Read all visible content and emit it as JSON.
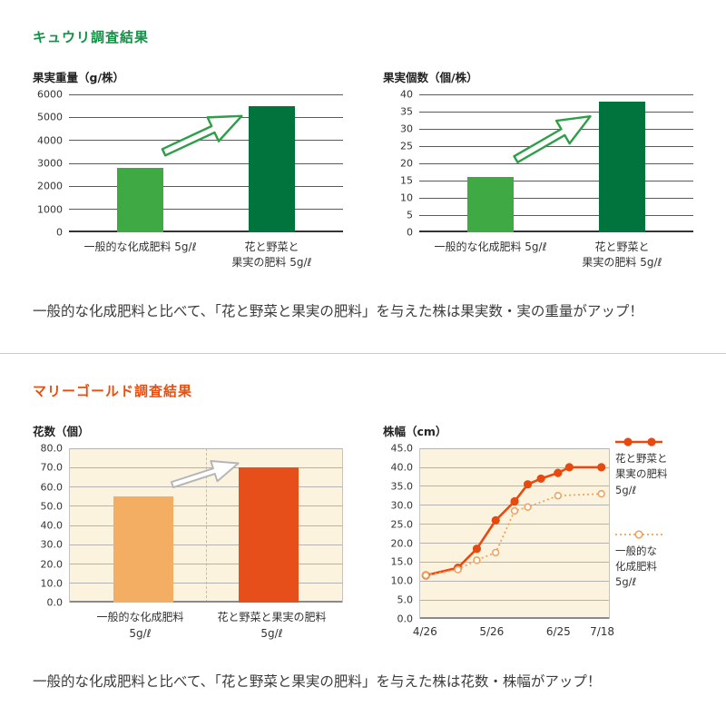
{
  "sections": [
    {
      "heading": "キュウリ調査結果",
      "summary": "一般的な化成肥料と比べて、「花と野菜と果実の肥料」を与えた株は果実数・実の重量がアップ！"
    },
    {
      "heading": "マリーゴールド調査結果",
      "summary": "一般的な化成肥料と比べて、「花と野菜と果実の肥料」を与えた株は花数・株幅がアップ！"
    }
  ],
  "colors": {
    "heading_green": "#119247",
    "heading_orange": "#ea4e0d",
    "bar_green_light": "#3faa44",
    "bar_green_dark": "#00743c",
    "bar_orange_light": "#f4ae63",
    "bar_orange_dark": "#e64e1a",
    "panel_beige": "#fcf3de",
    "line_solid": "#e8490f",
    "line_dotted": "#f0a35e"
  },
  "chart_data": [
    {
      "type": "bar",
      "title": "果実重量（g/株）",
      "categories": [
        [
          "一般的な化成肥料 5g/ℓ"
        ],
        [
          "花と野菜と",
          "果実の肥料 5g/ℓ"
        ]
      ],
      "values": [
        2800,
        5500
      ],
      "ylim": [
        0,
        6000
      ],
      "ytick_step": 1000,
      "decimals": false,
      "grid": true,
      "legend_position": "none",
      "bar_colors": [
        "#3faa44",
        "#00743c"
      ],
      "bar_centers_pct": [
        26,
        74
      ],
      "bar_width_pct": 17
    },
    {
      "type": "bar",
      "title": "果実個数（個/株）",
      "categories": [
        [
          "一般的な化成肥料 5g/ℓ"
        ],
        [
          "花と野菜と",
          "果実の肥料 5g/ℓ"
        ]
      ],
      "values": [
        16,
        38
      ],
      "ylim": [
        0,
        40
      ],
      "ytick_step": 5,
      "decimals": false,
      "grid": true,
      "legend_position": "none",
      "bar_colors": [
        "#3faa44",
        "#00743c"
      ],
      "bar_centers_pct": [
        26,
        74
      ],
      "bar_width_pct": 17
    },
    {
      "type": "bar",
      "title": "花数（個）",
      "categories": [
        [
          "一般的な化成肥料",
          "5g/ℓ"
        ],
        [
          "花と野菜と果実の肥料",
          "5g/ℓ"
        ]
      ],
      "values": [
        55,
        70
      ],
      "ylim": [
        0,
        80
      ],
      "ytick_step": 10,
      "decimals": true,
      "grid": true,
      "legend_position": "none",
      "bar_colors": [
        "#f4ae63",
        "#e64e1a"
      ],
      "bar_centers_pct": [
        27,
        73
      ],
      "bar_width_pct": 22
    },
    {
      "type": "line",
      "title": "株幅（cm）",
      "ylim": [
        0,
        45
      ],
      "ytick_step": 5,
      "decimals": true,
      "grid": true,
      "legend_position": "right",
      "x_ticks": [
        [
          "4/26",
          0.03
        ],
        [
          "5/26",
          0.38
        ],
        [
          "6/25",
          0.73
        ],
        [
          "7/18",
          0.96
        ]
      ],
      "series": [
        {
          "name": "花と野菜と果実の肥料 5g/ℓ",
          "color": "#e8490f",
          "dashed": false,
          "open": false,
          "points": [
            [
              0.03,
              11.5
            ],
            [
              0.2,
              13.5
            ],
            [
              0.3,
              18.5
            ],
            [
              0.4,
              26
            ],
            [
              0.5,
              31
            ],
            [
              0.57,
              35.5
            ],
            [
              0.64,
              37
            ],
            [
              0.73,
              38.5
            ],
            [
              0.79,
              40
            ],
            [
              0.96,
              40
            ]
          ]
        },
        {
          "name": "一般的な化成肥料 5g/ℓ",
          "color": "#f0a35e",
          "dashed": true,
          "open": true,
          "points": [
            [
              0.03,
              11.5
            ],
            [
              0.2,
              13
            ],
            [
              0.3,
              15.5
            ],
            [
              0.4,
              17.5
            ],
            [
              0.5,
              28.5
            ],
            [
              0.57,
              29.5
            ],
            [
              0.73,
              32.5
            ],
            [
              0.96,
              33
            ]
          ]
        }
      ],
      "legend": [
        [
          "花と野菜と",
          "果実の肥料",
          "5g/ℓ"
        ],
        [
          "一般的な",
          "化成肥料",
          "5g/ℓ"
        ]
      ]
    }
  ]
}
